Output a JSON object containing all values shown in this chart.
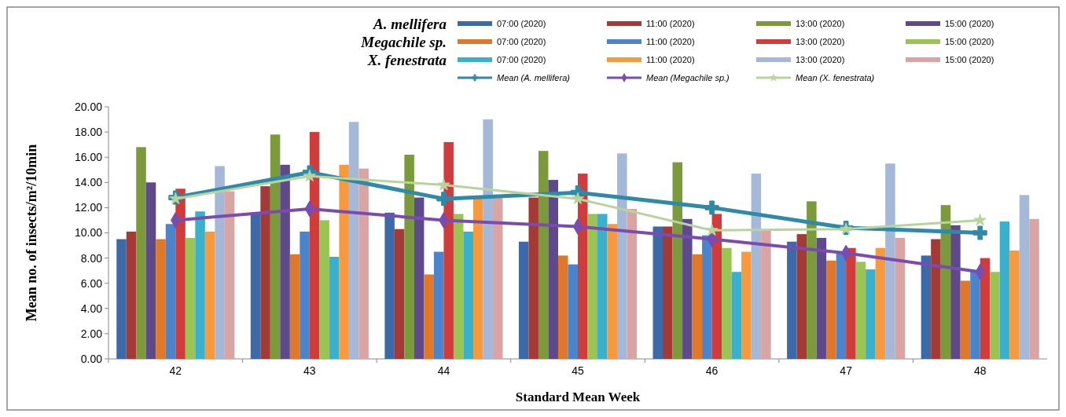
{
  "chart_data": {
    "type": "bar",
    "xlabel": "Standard Mean Week",
    "ylabel": "Mean no. of insects/m²/10min",
    "categories": [
      "42",
      "43",
      "44",
      "45",
      "46",
      "47",
      "48"
    ],
    "ylim": [
      0,
      20
    ],
    "yticks": [
      {
        "value": 0,
        "label": "0.00"
      },
      {
        "value": 2,
        "label": "2.00"
      },
      {
        "value": 4,
        "label": "4.00"
      },
      {
        "value": 6,
        "label": "6.00"
      },
      {
        "value": 8,
        "label": "8.00"
      },
      {
        "value": 10,
        "label": "10.00"
      },
      {
        "value": 12,
        "label": "12.00"
      },
      {
        "value": 14,
        "label": "14.00"
      },
      {
        "value": 16,
        "label": "16.00"
      },
      {
        "value": 18,
        "label": "18.00"
      },
      {
        "value": 20,
        "label": "20.00"
      }
    ],
    "grid": false,
    "legend": "top right",
    "annotations": [
      "A. mellifera",
      "Megachile sp.",
      "X. fenestrata"
    ],
    "series": [
      {
        "name": "07:00 (2020)",
        "color": "#3c6aa8",
        "values": [
          9.5,
          11.6,
          11.6,
          9.3,
          10.5,
          9.3,
          8.2
        ]
      },
      {
        "name": "11:00 (2020)",
        "color": "#a33a36",
        "values": [
          10.1,
          13.7,
          10.3,
          12.8,
          10.5,
          9.9,
          9.5
        ]
      },
      {
        "name": "13:00 (2020)",
        "color": "#7a9a3c",
        "values": [
          16.8,
          17.8,
          16.2,
          16.5,
          15.6,
          12.5,
          12.2
        ]
      },
      {
        "name": "15:00 (2020)",
        "color": "#5e4a8a",
        "values": [
          14.0,
          15.4,
          12.8,
          14.2,
          11.1,
          9.6,
          10.6
        ]
      },
      {
        "name": "07:00 (2020)",
        "color": "#e0782a",
        "values": [
          9.5,
          8.3,
          6.7,
          8.2,
          8.3,
          7.8,
          6.2
        ]
      },
      {
        "name": "11:00 (2020)",
        "color": "#4a84cc",
        "values": [
          10.7,
          10.1,
          8.5,
          7.5,
          9.8,
          8.5,
          7.0
        ]
      },
      {
        "name": "13:00 (2020)",
        "color": "#d03c3c",
        "values": [
          13.5,
          18.0,
          17.2,
          14.7,
          11.5,
          8.8,
          8.0
        ]
      },
      {
        "name": "15:00 (2020)",
        "color": "#9ac454",
        "values": [
          9.6,
          11.0,
          11.5,
          11.5,
          8.8,
          7.7,
          6.9
        ]
      },
      {
        "name": "07:00 (2020)",
        "color": "#3bb0cc",
        "values": [
          11.7,
          8.1,
          10.1,
          11.5,
          6.9,
          7.1,
          10.9
        ]
      },
      {
        "name": "11:00 (2020)",
        "color": "#f79a3e",
        "values": [
          10.1,
          15.4,
          12.8,
          10.7,
          8.5,
          8.8,
          8.6
        ]
      },
      {
        "name": "13:00 (2020)",
        "color": "#a6b8d8",
        "values": [
          15.3,
          18.8,
          19.0,
          16.3,
          14.7,
          15.5,
          13.0
        ]
      },
      {
        "name": "15:00 (2020)",
        "color": "#d8a4a4",
        "values": [
          13.3,
          15.1,
          12.8,
          11.9,
          10.2,
          9.6,
          11.1
        ]
      },
      {
        "name": "Mean (A. mellifera)",
        "type": "line",
        "marker": "cross",
        "color": "#2e8aa8",
        "values": [
          12.8,
          14.8,
          12.7,
          13.2,
          12.0,
          10.4,
          10.0
        ]
      },
      {
        "name": "Mean (Megachile sp.)",
        "type": "line",
        "marker": "diamond",
        "color": "#7a4cb0",
        "values": [
          11.0,
          11.9,
          11.0,
          10.5,
          9.5,
          8.4,
          6.9
        ]
      },
      {
        "name": "Mean (X. fenestrata)",
        "type": "line",
        "marker": "star",
        "color": "#b8d49c",
        "values": [
          12.7,
          14.5,
          13.8,
          12.7,
          10.2,
          10.3,
          11.0
        ]
      }
    ]
  }
}
